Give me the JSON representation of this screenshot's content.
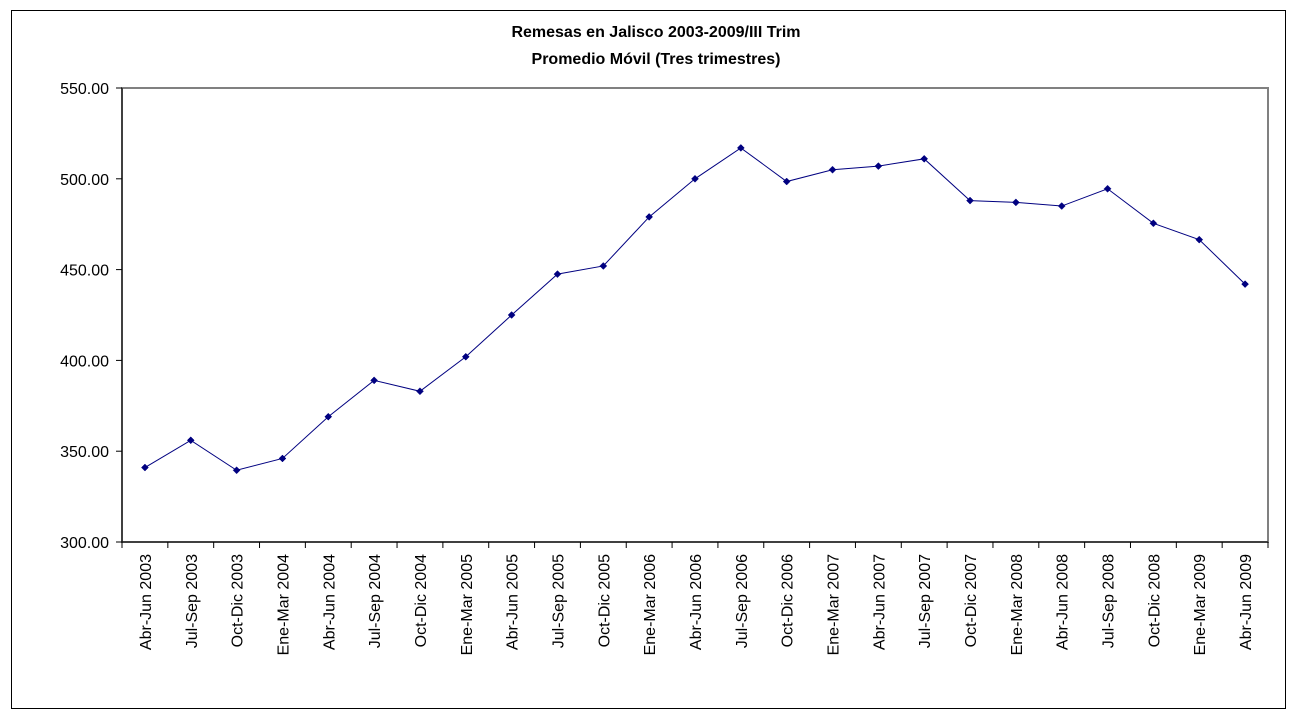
{
  "chart_data": {
    "type": "line",
    "title": "Remesas en Jalisco 2003-2009/III Trim",
    "subtitle": "Promedio Móvil (Tres trimestres)",
    "xlabel": "",
    "ylabel": "",
    "ylim": [
      300,
      550
    ],
    "yticks": [
      "300.00",
      "350.00",
      "400.00",
      "450.00",
      "500.00",
      "550.00"
    ],
    "grid": false,
    "legend": "none",
    "series_color": "#000080",
    "categories": [
      "Abr-Jun 2003",
      "Jul-Sep 2003",
      "Oct-Dic 2003",
      "Ene-Mar 2004",
      "Abr-Jun 2004",
      "Jul-Sep 2004",
      "Oct-Dic 2004",
      "Ene-Mar 2005",
      "Abr-Jun 2005",
      "Jul-Sep 2005",
      "Oct-Dic 2005",
      "Ene-Mar 2006",
      "Abr-Jun 2006",
      "Jul-Sep 2006",
      "Oct-Dic 2006",
      "Ene-Mar 2007",
      "Abr-Jun 2007",
      "Jul-Sep 2007",
      "Oct-Dic 2007",
      "Ene-Mar 2008",
      "Abr-Jun 2008",
      "Jul-Sep 2008",
      "Oct-Dic 2008",
      "Ene-Mar 2009",
      "Abr-Jun 2009"
    ],
    "values": [
      341,
      356,
      339.5,
      346,
      369,
      389,
      383,
      402,
      425,
      447.5,
      452,
      479,
      500,
      517,
      498.5,
      505,
      507,
      511,
      488,
      487,
      485,
      494.5,
      475.5,
      466.5,
      442
    ]
  }
}
